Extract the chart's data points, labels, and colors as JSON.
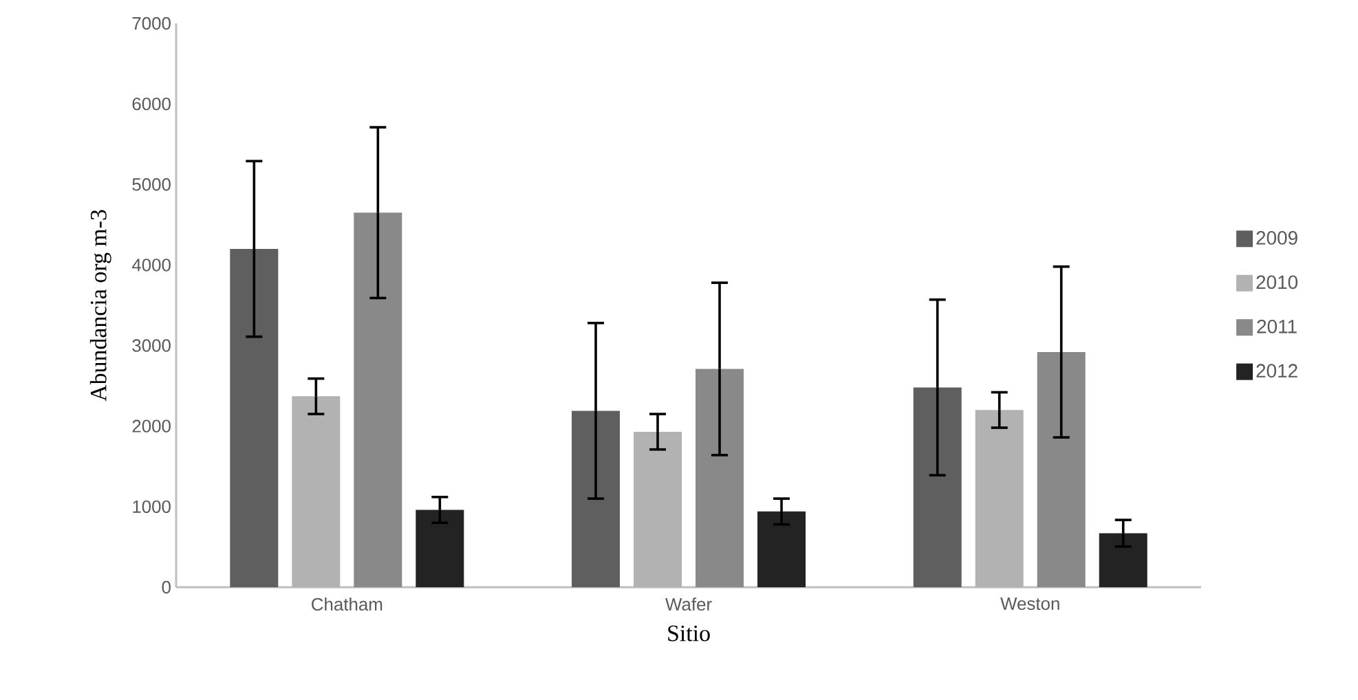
{
  "chart_data": {
    "type": "bar",
    "xlabel": "Sitio",
    "ylabel": "Abundancia org m-3",
    "categories": [
      "Chatham",
      "Wafer",
      "Weston"
    ],
    "series": [
      {
        "name": "2009",
        "color": "#5f5f5f",
        "values": [
          4200,
          2190,
          2480
        ],
        "errors": [
          1090,
          1090,
          1090
        ]
      },
      {
        "name": "2010",
        "color": "#b2b2b2",
        "values": [
          2370,
          1930,
          2200
        ],
        "errors": [
          220,
          220,
          220
        ]
      },
      {
        "name": "2011",
        "color": "#898989",
        "values": [
          4650,
          2710,
          2920
        ],
        "errors": [
          1060,
          1070,
          1060
        ]
      },
      {
        "name": "2012",
        "color": "#232323",
        "values": [
          960,
          940,
          670
        ],
        "errors": [
          160,
          160,
          165
        ]
      }
    ],
    "ylim": [
      0,
      7000
    ],
    "yticks": [
      0,
      1000,
      2000,
      3000,
      4000,
      5000,
      6000,
      7000
    ],
    "legend": "right"
  }
}
